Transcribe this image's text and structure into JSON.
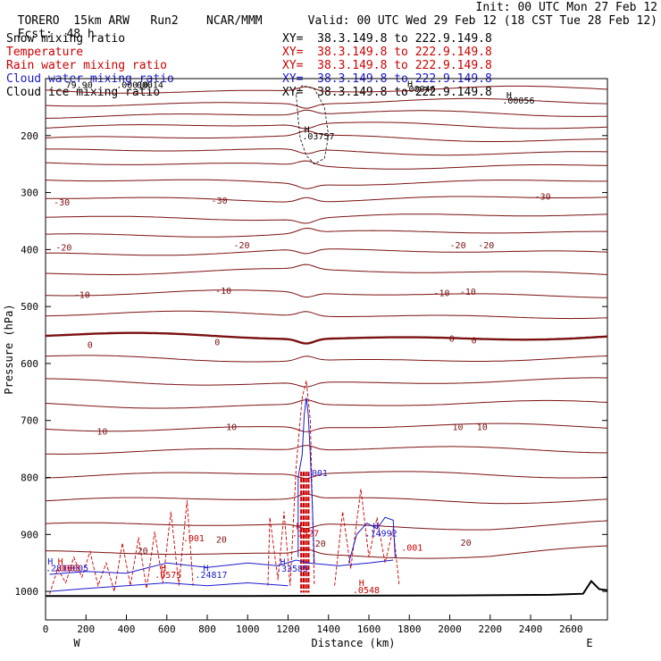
{
  "header": {
    "model": "TORERO",
    "resolution": "15km ARW",
    "run": "Run2",
    "org": "NCAR/MMM",
    "init": "Init: 00 UTC Mon 27 Feb 12",
    "fcst_label": "Fcst:",
    "fcst_value": "48 h",
    "valid": "Valid: 00 UTC Wed 29 Feb 12 (18 CST Tue 28 Feb 12)"
  },
  "legend": [
    {
      "name": "Snow mixing ratio",
      "xy": "XY=  38.3.149.8 to 222.9.149.8",
      "color": "#000000"
    },
    {
      "name": "Temperature",
      "xy": "XY=  38.3.149.8 to 222.9.149.8",
      "color": "#cc0000"
    },
    {
      "name": "Rain water mixing ratio",
      "xy": "XY=  38.3.149.8 to 222.9.149.8",
      "color": "#cc0000"
    },
    {
      "name": "Cloud water mixing ratio",
      "xy": "XY=  38.3.149.8 to 222.9.149.8",
      "color": "#1a1acc"
    },
    {
      "name": "Cloud ice mixing ratio",
      "xy": "XY=  38.3.149.8 to 222.9.149.8",
      "color": "#000000"
    }
  ],
  "colors": {
    "temperature": "#7a1010",
    "rain": "#cc0000",
    "cloud_water": "#1a1acc",
    "snow": "#000000",
    "terrain": "#000000"
  },
  "chart_data": {
    "type": "contour-cross-section",
    "xlabel": "Distance (km)",
    "ylabel": "Pressure (hPa)",
    "xlim": [
      0,
      2780
    ],
    "ylim": [
      1050,
      100
    ],
    "x_ticks": [
      0,
      200,
      400,
      600,
      800,
      1000,
      1200,
      1400,
      1600,
      1800,
      2000,
      2200,
      2400,
      2600
    ],
    "y_ticks": [
      200,
      300,
      400,
      500,
      600,
      700,
      800,
      900,
      1000
    ],
    "endpoints": {
      "left": "W",
      "right": "E"
    },
    "temperature_labels": [
      {
        "value": "-30",
        "x": 80,
        "p": 318
      },
      {
        "value": "-30",
        "x": 860,
        "p": 315
      },
      {
        "value": "-30",
        "x": 2460,
        "p": 308
      },
      {
        "value": "-20",
        "x": 90,
        "p": 397
      },
      {
        "value": "-20",
        "x": 970,
        "p": 393
      },
      {
        "value": "-20",
        "x": 2040,
        "p": 393
      },
      {
        "value": "-20",
        "x": 2180,
        "p": 393
      },
      {
        "value": "-10",
        "x": 180,
        "p": 480
      },
      {
        "value": "-10",
        "x": 880,
        "p": 473
      },
      {
        "value": "-10",
        "x": 1960,
        "p": 477
      },
      {
        "value": "-10",
        "x": 2090,
        "p": 475
      },
      {
        "value": "0",
        "x": 220,
        "p": 568
      },
      {
        "value": "0",
        "x": 850,
        "p": 563
      },
      {
        "value": "0",
        "x": 2010,
        "p": 557
      },
      {
        "value": "0",
        "x": 2120,
        "p": 560
      },
      {
        "value": "10",
        "x": 280,
        "p": 720
      },
      {
        "value": "10",
        "x": 920,
        "p": 712
      },
      {
        "value": "10",
        "x": 2040,
        "p": 712
      },
      {
        "value": "10",
        "x": 2160,
        "p": 712
      },
      {
        "value": "20",
        "x": 480,
        "p": 929
      },
      {
        "value": "20",
        "x": 870,
        "p": 910
      },
      {
        "value": "20",
        "x": 1360,
        "p": 917
      },
      {
        "value": "20",
        "x": 2080,
        "p": 915
      }
    ],
    "annotations": [
      {
        "text": "H",
        "x": 1280,
        "p": 190,
        "color": "#000000"
      },
      {
        "text": ".03757",
        "x": 1270,
        "p": 202,
        "color": "#000000"
      },
      {
        "text": "H",
        "x": 1790,
        "p": 110,
        "color": "#000000"
      },
      {
        "text": ".00046",
        "x": 1770,
        "p": 119,
        "color": "#000000"
      },
      {
        "text": "H",
        "x": 2280,
        "p": 130,
        "color": "#000000"
      },
      {
        "text": ".00056",
        "x": 2260,
        "p": 139,
        "color": "#000000"
      },
      {
        "text": "H",
        "x": 1620,
        "p": 886,
        "color": "#1a1acc"
      },
      {
        "text": ".14992",
        "x": 1580,
        "p": 899,
        "color": "#1a1acc"
      },
      {
        "text": "H",
        "x": 1240,
        "p": 886,
        "color": "#cc0000"
      },
      {
        "text": ".1527",
        "x": 1220,
        "p": 899,
        "color": "#cc0000"
      },
      {
        "text": ".001",
        "x": 1290,
        "p": 793,
        "color": "#1a1acc"
      },
      {
        "text": "H",
        "x": 1160,
        "p": 949,
        "color": "#1a1acc"
      },
      {
        "text": ".33585",
        "x": 1140,
        "p": 961,
        "color": "#1a1acc"
      },
      {
        "text": "H",
        "x": 780,
        "p": 960,
        "color": "#1a1acc"
      },
      {
        "text": ".24817",
        "x": 740,
        "p": 972,
        "color": "#1a1acc"
      },
      {
        "text": "H",
        "x": 570,
        "p": 960,
        "color": "#cc0000"
      },
      {
        "text": ".0575",
        "x": 540,
        "p": 972,
        "color": "#cc0000"
      },
      {
        "text": ".001",
        "x": 680,
        "p": 907,
        "color": "#cc0000"
      },
      {
        "text": ".001",
        "x": 1760,
        "p": 924,
        "color": "#cc0000"
      },
      {
        "text": "H",
        "x": 1550,
        "p": 986,
        "color": "#cc0000"
      },
      {
        "text": ".0548",
        "x": 1520,
        "p": 998,
        "color": "#cc0000"
      },
      {
        "text": "H",
        "x": 10,
        "p": 948,
        "color": "#1a1acc"
      },
      {
        "text": "H",
        "x": 60,
        "p": 948,
        "color": "#cc0000"
      },
      {
        "text": ".2810005",
        "x": 0,
        "p": 960,
        "color": "#1a1acc"
      },
      {
        "text": ".0003",
        "x": 40,
        "p": 960,
        "color": "#cc0000"
      },
      {
        "text": ".00010",
        "x": 350,
        "p": 112,
        "color": "#000000"
      },
      {
        "text": "79.90",
        "x": 100,
        "p": 112,
        "color": "#000000"
      },
      {
        "text": "00014",
        "x": 450,
        "p": 112,
        "color": "#000000"
      }
    ]
  }
}
